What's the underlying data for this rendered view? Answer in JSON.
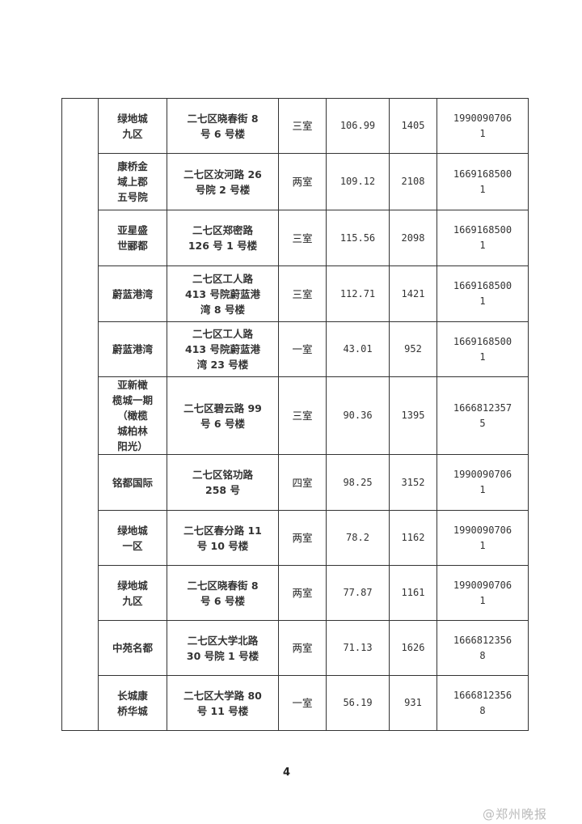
{
  "table": {
    "rows": [
      {
        "name": "绿地城\n九区",
        "address": "二七区晓春街 8\n号 6 号楼",
        "rooms": "三室",
        "area": "106.99",
        "price": "1405",
        "phone": "1990090706\n1"
      },
      {
        "name": "康桥金\n域上郡\n五号院",
        "address": "二七区汝河路 26\n号院 2 号楼",
        "rooms": "两室",
        "area": "109.12",
        "price": "2108",
        "phone": "1669168500\n1"
      },
      {
        "name": "亚星盛\n世郦都",
        "address": "二七区郑密路\n126 号 1 号楼",
        "rooms": "三室",
        "area": "115.56",
        "price": "2098",
        "phone": "1669168500\n1"
      },
      {
        "name": "蔚蓝港湾",
        "address": "二七区工人路\n413 号院蔚蓝港\n湾 8 号楼",
        "rooms": "三室",
        "area": "112.71",
        "price": "1421",
        "phone": "1669168500\n1"
      },
      {
        "name": "蔚蓝港湾",
        "address": "二七区工人路\n413 号院蔚蓝港\n湾 23 号楼",
        "rooms": "一室",
        "area": "43.01",
        "price": "952",
        "phone": "1669168500\n1"
      },
      {
        "name": "亚新橄\n榄城一期\n（橄榄\n城柏林\n阳光）",
        "address": "二七区碧云路 99\n号 6 号楼",
        "rooms": "三室",
        "area": "90.36",
        "price": "1395",
        "phone": "1666812357\n5"
      },
      {
        "name": "铭都国际",
        "address": "二七区铭功路\n258 号",
        "rooms": "四室",
        "area": "98.25",
        "price": "3152",
        "phone": "1990090706\n1"
      },
      {
        "name": "绿地城\n一区",
        "address": "二七区春分路 11\n号 10 号楼",
        "rooms": "两室",
        "area": "78.2",
        "price": "1162",
        "phone": "1990090706\n1"
      },
      {
        "name": "绿地城\n九区",
        "address": "二七区晓春街 8\n号 6 号楼",
        "rooms": "两室",
        "area": "77.87",
        "price": "1161",
        "phone": "1990090706\n1"
      },
      {
        "name": "中苑名都",
        "address": "二七区大学北路\n30 号院 1 号楼",
        "rooms": "两室",
        "area": "71.13",
        "price": "1626",
        "phone": "1666812356\n8"
      },
      {
        "name": "长城康\n桥华城",
        "address": "二七区大学路 80\n号 11 号楼",
        "rooms": "一室",
        "area": "56.19",
        "price": "931",
        "phone": "1666812356\n8"
      }
    ]
  },
  "page_number": "4",
  "watermark": "@郑州晚报"
}
